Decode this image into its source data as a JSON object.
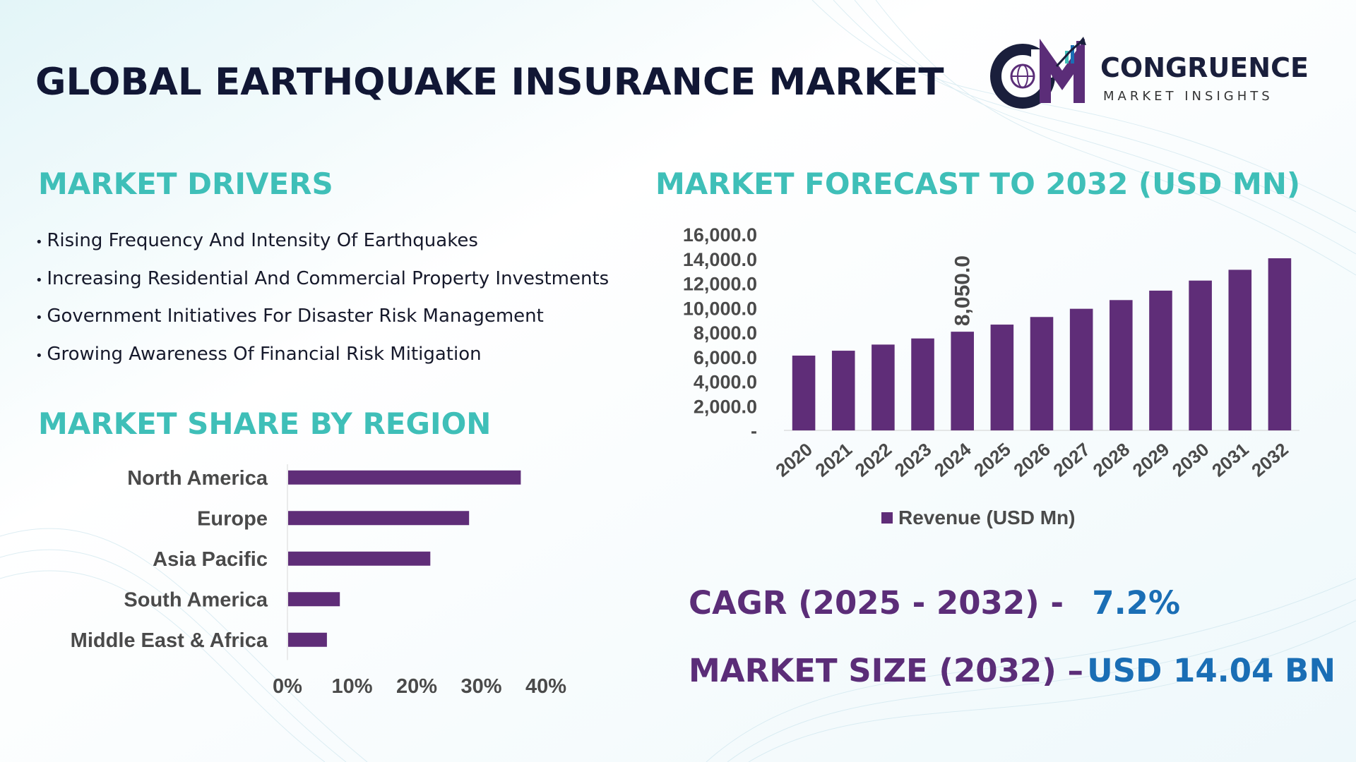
{
  "title": "GLOBAL EARTHQUAKE INSURANCE MARKET",
  "logo": {
    "icon": "cm-globe-chart-logo-icon",
    "brand": "CONGRUENCE",
    "tagline": "MARKET INSIGHTS"
  },
  "drivers": {
    "title": "MARKET DRIVERS",
    "items": [
      "Rising Frequency And Intensity Of Earthquakes",
      "Increasing Residential And Commercial Property Investments",
      "Government Initiatives For Disaster Risk Management",
      "Growing Awareness Of Financial Risk Mitigation"
    ]
  },
  "forecast": {
    "title": "MARKET FORECAST TO 2032 (USD MN)"
  },
  "region": {
    "title": "MARKET SHARE BY REGION"
  },
  "kpis": {
    "cagr_label": "CAGR (2025 - 2032) -",
    "cagr_value": "7.2%",
    "size_label": "MARKET SIZE (2032) –",
    "size_value": "USD 14.04 BN"
  },
  "colors": {
    "bar": "#5f2d78",
    "teal": "#3fbfb8",
    "blue": "#1a6eb5",
    "navy": "#111735"
  },
  "chart_data": [
    {
      "type": "bar",
      "categories": [
        "2020",
        "2021",
        "2022",
        "2023",
        "2024",
        "2025",
        "2026",
        "2027",
        "2028",
        "2029",
        "2030",
        "2031",
        "2032"
      ],
      "series": [
        {
          "name": "Revenue (USD Mn)",
          "values": [
            6100,
            6500,
            7000,
            7500,
            8050,
            8630,
            9250,
            9920,
            10630,
            11400,
            12220,
            13100,
            14040
          ]
        }
      ],
      "y_ticks": [
        "-",
        "2,000.0",
        "4,000.0",
        "6,000.0",
        "8,000.0",
        "10,000.0",
        "12,000.0",
        "14,000.0",
        "16,000.0"
      ],
      "ylim": [
        0,
        16000
      ],
      "data_labels": [
        {
          "category": "2024",
          "text": "8,050.0"
        }
      ],
      "legend": "bottom",
      "grid": false
    },
    {
      "type": "bar",
      "orientation": "horizontal",
      "categories": [
        "North America",
        "Europe",
        "Asia Pacific",
        "South America",
        "Middle East & Africa"
      ],
      "values": [
        36,
        28,
        22,
        8,
        6
      ],
      "x_ticks": [
        "0%",
        "10%",
        "20%",
        "30%",
        "40%"
      ],
      "xlim": [
        0,
        40
      ],
      "grid": false
    }
  ]
}
